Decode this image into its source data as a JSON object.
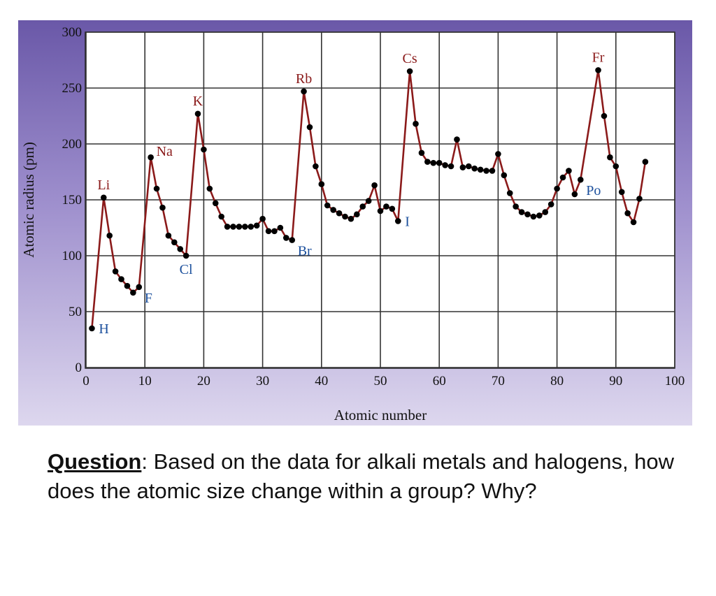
{
  "chart_data": {
    "type": "line",
    "xlabel": "Atomic number",
    "ylabel": "Atomic radius (pm)",
    "xlim": [
      0,
      100
    ],
    "ylim": [
      0,
      300
    ],
    "xticks": [
      0,
      10,
      20,
      30,
      40,
      50,
      60,
      70,
      80,
      90,
      100
    ],
    "yticks": [
      0,
      50,
      100,
      150,
      200,
      250,
      300
    ],
    "grid": true,
    "line_color": "#8b1a1a",
    "marker_color": "#000000",
    "points": [
      [
        1,
        35
      ],
      [
        3,
        152
      ],
      [
        4,
        118
      ],
      [
        5,
        86
      ],
      [
        6,
        79
      ],
      [
        7,
        73
      ],
      [
        8,
        67
      ],
      [
        9,
        72
      ],
      [
        11,
        188
      ],
      [
        12,
        160
      ],
      [
        13,
        143
      ],
      [
        14,
        118
      ],
      [
        15,
        112
      ],
      [
        16,
        106
      ],
      [
        17,
        100
      ],
      [
        19,
        227
      ],
      [
        20,
        195
      ],
      [
        21,
        160
      ],
      [
        22,
        147
      ],
      [
        23,
        135
      ],
      [
        24,
        126
      ],
      [
        25,
        126
      ],
      [
        26,
        126
      ],
      [
        27,
        126
      ],
      [
        28,
        126
      ],
      [
        29,
        127
      ],
      [
        30,
        133
      ],
      [
        31,
        122
      ],
      [
        32,
        122
      ],
      [
        33,
        125
      ],
      [
        34,
        116
      ],
      [
        35,
        114
      ],
      [
        37,
        247
      ],
      [
        38,
        215
      ],
      [
        39,
        180
      ],
      [
        40,
        164
      ],
      [
        41,
        145
      ],
      [
        42,
        141
      ],
      [
        43,
        138
      ],
      [
        44,
        135
      ],
      [
        45,
        133
      ],
      [
        46,
        137
      ],
      [
        47,
        144
      ],
      [
        48,
        149
      ],
      [
        49,
        163
      ],
      [
        50,
        140
      ],
      [
        51,
        144
      ],
      [
        52,
        142
      ],
      [
        53,
        131
      ],
      [
        55,
        265
      ],
      [
        56,
        218
      ],
      [
        57,
        192
      ],
      [
        58,
        184
      ],
      [
        59,
        183
      ],
      [
        60,
        183
      ],
      [
        61,
        181
      ],
      [
        62,
        180
      ],
      [
        63,
        204
      ],
      [
        64,
        179
      ],
      [
        65,
        180
      ],
      [
        66,
        178
      ],
      [
        67,
        177
      ],
      [
        68,
        176
      ],
      [
        69,
        176
      ],
      [
        70,
        191
      ],
      [
        71,
        172
      ],
      [
        72,
        156
      ],
      [
        73,
        144
      ],
      [
        74,
        139
      ],
      [
        75,
        137
      ],
      [
        76,
        135
      ],
      [
        77,
        136
      ],
      [
        78,
        139
      ],
      [
        79,
        146
      ],
      [
        80,
        160
      ],
      [
        81,
        170
      ],
      [
        82,
        176
      ],
      [
        83,
        155
      ],
      [
        84,
        168
      ],
      [
        87,
        266
      ],
      [
        88,
        225
      ],
      [
        89,
        188
      ],
      [
        90,
        180
      ],
      [
        91,
        157
      ],
      [
        92,
        138
      ],
      [
        93,
        130
      ],
      [
        94,
        151
      ],
      [
        95,
        184
      ]
    ],
    "annotations": [
      {
        "text": "H",
        "x": 1,
        "y": 35,
        "color": "blue",
        "anchor": "right"
      },
      {
        "text": "Li",
        "x": 3,
        "y": 152,
        "color": "red",
        "anchor": "above"
      },
      {
        "text": "F",
        "x": 9,
        "y": 72,
        "color": "blue",
        "anchor": "below-right"
      },
      {
        "text": "Na",
        "x": 11,
        "y": 188,
        "color": "red",
        "anchor": "right-up"
      },
      {
        "text": "Cl",
        "x": 17,
        "y": 100,
        "color": "blue",
        "anchor": "below"
      },
      {
        "text": "K",
        "x": 19,
        "y": 227,
        "color": "red",
        "anchor": "above"
      },
      {
        "text": "Br",
        "x": 35,
        "y": 114,
        "color": "blue",
        "anchor": "below-right"
      },
      {
        "text": "Rb",
        "x": 37,
        "y": 247,
        "color": "red",
        "anchor": "above"
      },
      {
        "text": "I",
        "x": 53,
        "y": 131,
        "color": "blue",
        "anchor": "right"
      },
      {
        "text": "Cs",
        "x": 55,
        "y": 265,
        "color": "red",
        "anchor": "above"
      },
      {
        "text": "Po",
        "x": 84,
        "y": 168,
        "color": "blue",
        "anchor": "below-right"
      },
      {
        "text": "Fr",
        "x": 87,
        "y": 266,
        "color": "red",
        "anchor": "above"
      }
    ]
  },
  "question": {
    "label": "Question",
    "text": ": Based on the data for alkali metals and halogens, how does the atomic size change within a group? Why?"
  }
}
